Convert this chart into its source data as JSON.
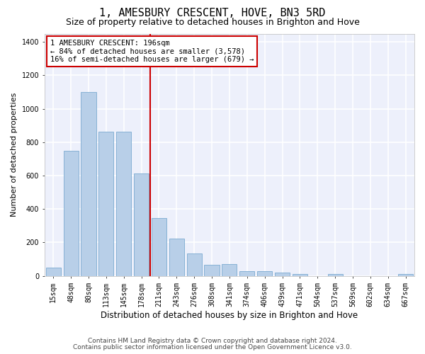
{
  "title": "1, AMESBURY CRESCENT, HOVE, BN3 5RD",
  "subtitle": "Size of property relative to detached houses in Brighton and Hove",
  "xlabel": "Distribution of detached houses by size in Brighton and Hove",
  "ylabel": "Number of detached properties",
  "categories": [
    "15sqm",
    "48sqm",
    "80sqm",
    "113sqm",
    "145sqm",
    "178sqm",
    "211sqm",
    "243sqm",
    "276sqm",
    "308sqm",
    "341sqm",
    "374sqm",
    "406sqm",
    "439sqm",
    "471sqm",
    "504sqm",
    "537sqm",
    "569sqm",
    "602sqm",
    "634sqm",
    "667sqm"
  ],
  "values": [
    50,
    750,
    1100,
    865,
    865,
    615,
    345,
    225,
    135,
    65,
    70,
    30,
    30,
    20,
    12,
    0,
    12,
    0,
    0,
    0,
    12
  ],
  "bar_color": "#b8cfe8",
  "bar_edgecolor": "#7aaad0",
  "background_color": "#edf0fb",
  "grid_color": "#ffffff",
  "vline_x": 5.5,
  "vline_color": "#cc0000",
  "annotation_text": "1 AMESBURY CRESCENT: 196sqm\n← 84% of detached houses are smaller (3,578)\n16% of semi-detached houses are larger (679) →",
  "annotation_box_facecolor": "#ffffff",
  "annotation_box_edgecolor": "#cc0000",
  "ylim": [
    0,
    1450
  ],
  "yticks": [
    0,
    200,
    400,
    600,
    800,
    1000,
    1200,
    1400
  ],
  "footnote1": "Contains HM Land Registry data © Crown copyright and database right 2024.",
  "footnote2": "Contains public sector information licensed under the Open Government Licence v3.0.",
  "title_fontsize": 11,
  "subtitle_fontsize": 9,
  "xlabel_fontsize": 8.5,
  "ylabel_fontsize": 8,
  "tick_fontsize": 7,
  "annotation_fontsize": 7.5,
  "footnote_fontsize": 6.5
}
